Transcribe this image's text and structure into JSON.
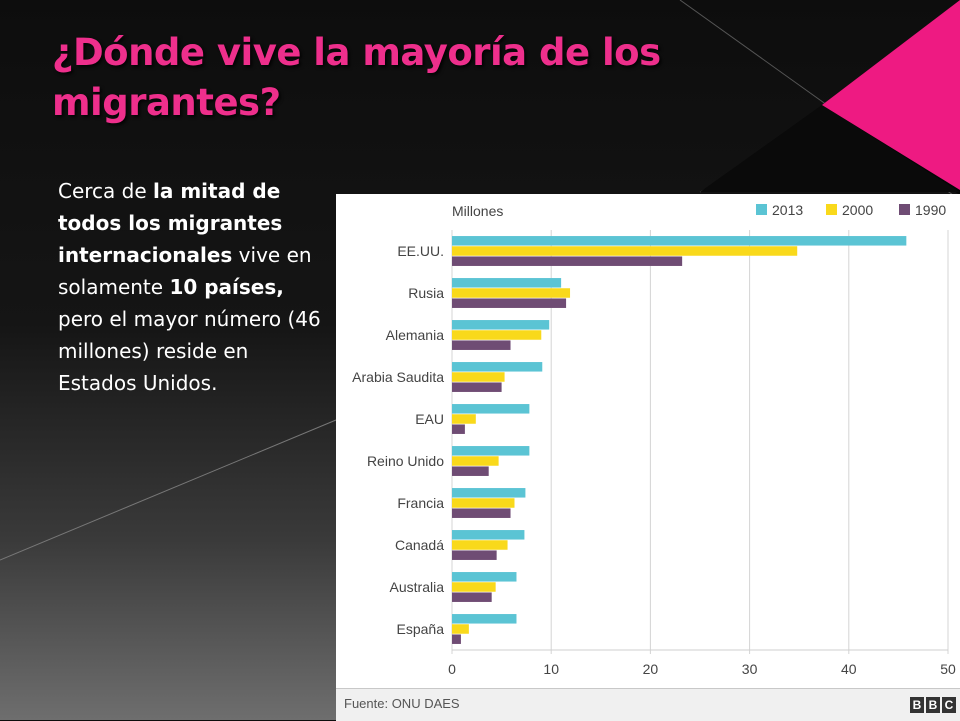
{
  "slide": {
    "title": "¿Dónde vive la mayoría de los migrantes?",
    "body": [
      {
        "text": "Cerca de ",
        "bold": false
      },
      {
        "text": "la mitad de todos los migrantes internacionales",
        "bold": true
      },
      {
        "text": " vive en solamente ",
        "bold": false
      },
      {
        "text": "10 países,",
        "bold": true
      },
      {
        "text": " pero el mayor número (46 millones) reside en Estados Unidos.",
        "bold": false
      }
    ],
    "accent_color": "#ee2f8c"
  },
  "chart_data": {
    "type": "bar",
    "orientation": "horizontal",
    "unit_label": "Millones",
    "categories": [
      "EE.UU.",
      "Rusia",
      "Alemania",
      "Arabia Saudita",
      "EAU",
      "Reino Unido",
      "Francia",
      "Canadá",
      "Australia",
      "España"
    ],
    "series": [
      {
        "name": "2013",
        "color": "#5bc4d4",
        "values": [
          45.8,
          11.0,
          9.8,
          9.1,
          7.8,
          7.8,
          7.4,
          7.3,
          6.5,
          6.5
        ]
      },
      {
        "name": "2000",
        "color": "#f9d91b",
        "values": [
          34.8,
          11.9,
          9.0,
          5.3,
          2.4,
          4.7,
          6.3,
          5.6,
          4.4,
          1.7
        ]
      },
      {
        "name": "1990",
        "color": "#6f4c74",
        "values": [
          23.2,
          11.5,
          5.9,
          5.0,
          1.3,
          3.7,
          5.9,
          4.5,
          4.0,
          0.9
        ]
      }
    ],
    "xlim": [
      0,
      50
    ],
    "xticks": [
      0,
      10,
      20,
      30,
      40,
      50
    ],
    "grid": true,
    "legend_position": "top-right",
    "source": "Fuente: ONU DAES",
    "logo": "BBC"
  }
}
